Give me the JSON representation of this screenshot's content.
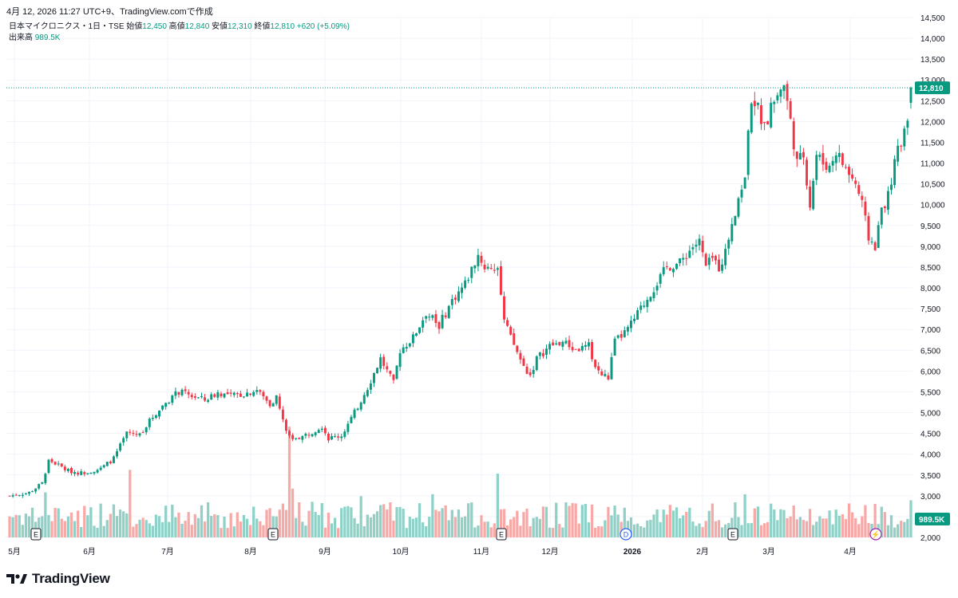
{
  "header": {
    "text": "4月 12, 2026 11:27 UTC+9、TradingView.comで作成"
  },
  "legend": {
    "symbol": "日本マイクロニクス・1日・TSE",
    "open_label": "始値",
    "open_value": "12,450",
    "high_label": "高値",
    "high_value": "12,840",
    "low_label": "安値",
    "low_value": "12,310",
    "close_label": "終値",
    "close_value": "12,810",
    "change": "+620 (+5.09%)",
    "volume_label": "出来高",
    "volume_value": "989.5K"
  },
  "brand": {
    "name": "TradingView"
  },
  "colors": {
    "up": "#089981",
    "down": "#f23645",
    "volume_up": "#8fd1c7",
    "volume_down": "#f7a9a7",
    "grid": "#f0f3fa",
    "axis_text": "#131722"
  },
  "chart_data": {
    "type": "candlestick",
    "ylim": [
      2000,
      14500
    ],
    "y_ticks": [
      "14,500",
      "14,000",
      "13,500",
      "13,000",
      "12,500",
      "12,000",
      "11,500",
      "11,000",
      "10,500",
      "10,000",
      "9,500",
      "9,000",
      "8,500",
      "8,000",
      "7,500",
      "7,000",
      "6,500",
      "6,000",
      "5,500",
      "5,000",
      "4,500",
      "4,000",
      "3,500",
      "3,000",
      "2,500",
      "2,000"
    ],
    "x_ticks": [
      "5月",
      "6月",
      "7月",
      "8月",
      "9月",
      "10月",
      "11月",
      "12月",
      "2026",
      "2月",
      "3月",
      "4月"
    ],
    "price_label": "12,810",
    "volume_label": "989.5K",
    "event_markers": [
      "E",
      "E",
      "E",
      "D",
      "E",
      "⚡"
    ],
    "anchors": [
      [
        0,
        3000
      ],
      [
        6,
        3080
      ],
      [
        10,
        3300
      ],
      [
        12,
        3850
      ],
      [
        14,
        3780
      ],
      [
        18,
        3600
      ],
      [
        22,
        3550
      ],
      [
        28,
        3650
      ],
      [
        32,
        3900
      ],
      [
        36,
        4500
      ],
      [
        40,
        4480
      ],
      [
        44,
        4900
      ],
      [
        48,
        5250
      ],
      [
        52,
        5500
      ],
      [
        56,
        5400
      ],
      [
        60,
        5300
      ],
      [
        64,
        5480
      ],
      [
        68,
        5400
      ],
      [
        72,
        5450
      ],
      [
        76,
        5550
      ],
      [
        80,
        5200
      ],
      [
        82,
        5380
      ],
      [
        84,
        4800
      ],
      [
        86,
        4400
      ],
      [
        90,
        4420
      ],
      [
        96,
        4680
      ],
      [
        98,
        4380
      ],
      [
        102,
        4450
      ],
      [
        106,
        5000
      ],
      [
        110,
        5600
      ],
      [
        114,
        6300
      ],
      [
        118,
        5700
      ],
      [
        120,
        6500
      ],
      [
        124,
        6800
      ],
      [
        128,
        7400
      ],
      [
        132,
        7100
      ],
      [
        136,
        7700
      ],
      [
        140,
        8100
      ],
      [
        144,
        8800
      ],
      [
        146,
        8500
      ],
      [
        150,
        8480
      ],
      [
        152,
        7200
      ],
      [
        154,
        6800
      ],
      [
        158,
        6100
      ],
      [
        160,
        5900
      ],
      [
        162,
        6300
      ],
      [
        166,
        6600
      ],
      [
        170,
        6700
      ],
      [
        174,
        6500
      ],
      [
        178,
        6600
      ],
      [
        180,
        6100
      ],
      [
        182,
        5900
      ],
      [
        184,
        5850
      ],
      [
        186,
        6700
      ],
      [
        190,
        7000
      ],
      [
        194,
        7500
      ],
      [
        198,
        8000
      ],
      [
        202,
        8500
      ],
      [
        206,
        8600
      ],
      [
        210,
        9000
      ],
      [
        212,
        9100
      ],
      [
        214,
        8500
      ],
      [
        216,
        8700
      ],
      [
        218,
        8500
      ],
      [
        220,
        8850
      ],
      [
        222,
        9600
      ],
      [
        226,
        10700
      ],
      [
        228,
        12600
      ],
      [
        230,
        12300
      ],
      [
        232,
        11800
      ],
      [
        234,
        12300
      ],
      [
        236,
        12650
      ],
      [
        238,
        12900
      ],
      [
        240,
        12000
      ],
      [
        242,
        11000
      ],
      [
        244,
        11200
      ],
      [
        246,
        10000
      ],
      [
        248,
        11200
      ],
      [
        250,
        11000
      ],
      [
        252,
        10900
      ],
      [
        254,
        11300
      ],
      [
        256,
        11000
      ],
      [
        260,
        10500
      ],
      [
        262,
        10000
      ],
      [
        264,
        9200
      ],
      [
        266,
        9000
      ],
      [
        268,
        9900
      ],
      [
        270,
        10200
      ],
      [
        272,
        11000
      ],
      [
        274,
        11500
      ],
      [
        276,
        12200
      ],
      [
        277,
        12810
      ]
    ],
    "volume_spikes": [
      [
        11,
        1200
      ],
      [
        37,
        1800
      ],
      [
        86,
        2950
      ],
      [
        87,
        1300
      ],
      [
        108,
        1100
      ],
      [
        130,
        1150
      ],
      [
        150,
        1700
      ],
      [
        226,
        1150
      ],
      [
        234,
        900
      ]
    ]
  }
}
